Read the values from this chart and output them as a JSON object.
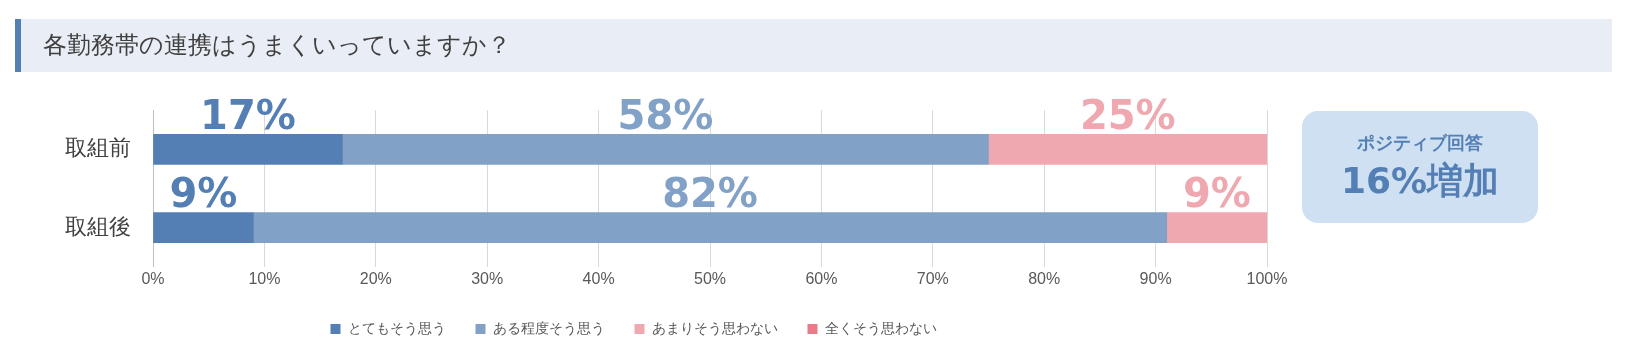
{
  "chart_data": {
    "type": "bar",
    "orientation": "horizontal",
    "stacked": true,
    "title": "各勤務帯の連携はうまくいっていますか？",
    "categories": [
      "取組前",
      "取組後"
    ],
    "series": [
      {
        "name": "とてもそう思う",
        "color": "#547fb4",
        "values": [
          17,
          9
        ],
        "value_labels": [
          "17%",
          "9%"
        ]
      },
      {
        "name": "ある程度そう思う",
        "color": "#82a1c7",
        "values": [
          58,
          82
        ],
        "value_labels": [
          "58%",
          "82%"
        ]
      },
      {
        "name": "あまりそう思わない",
        "color": "#f0a8b0",
        "values": [
          25,
          9
        ],
        "value_labels": [
          "25%",
          "9%"
        ]
      },
      {
        "name": "全くそう思わない",
        "color": "#e97a87",
        "values": [
          0,
          0
        ],
        "value_labels": [
          null,
          null
        ]
      }
    ],
    "xlim": [
      0,
      100
    ],
    "xticks": [
      {
        "value": 0,
        "label": "0%"
      },
      {
        "value": 10,
        "label": "10%"
      },
      {
        "value": 20,
        "label": "20%"
      },
      {
        "value": 30,
        "label": "30%"
      },
      {
        "value": 40,
        "label": "40%"
      },
      {
        "value": 50,
        "label": "50%"
      },
      {
        "value": 60,
        "label": "60%"
      },
      {
        "value": 70,
        "label": "70%"
      },
      {
        "value": 80,
        "label": "80%"
      },
      {
        "value": 90,
        "label": "90%"
      },
      {
        "value": 100,
        "label": "100%"
      }
    ],
    "grid": "x",
    "legend": "bottom",
    "annotations": [
      "ポジティブ回答",
      "16%増加"
    ]
  }
}
